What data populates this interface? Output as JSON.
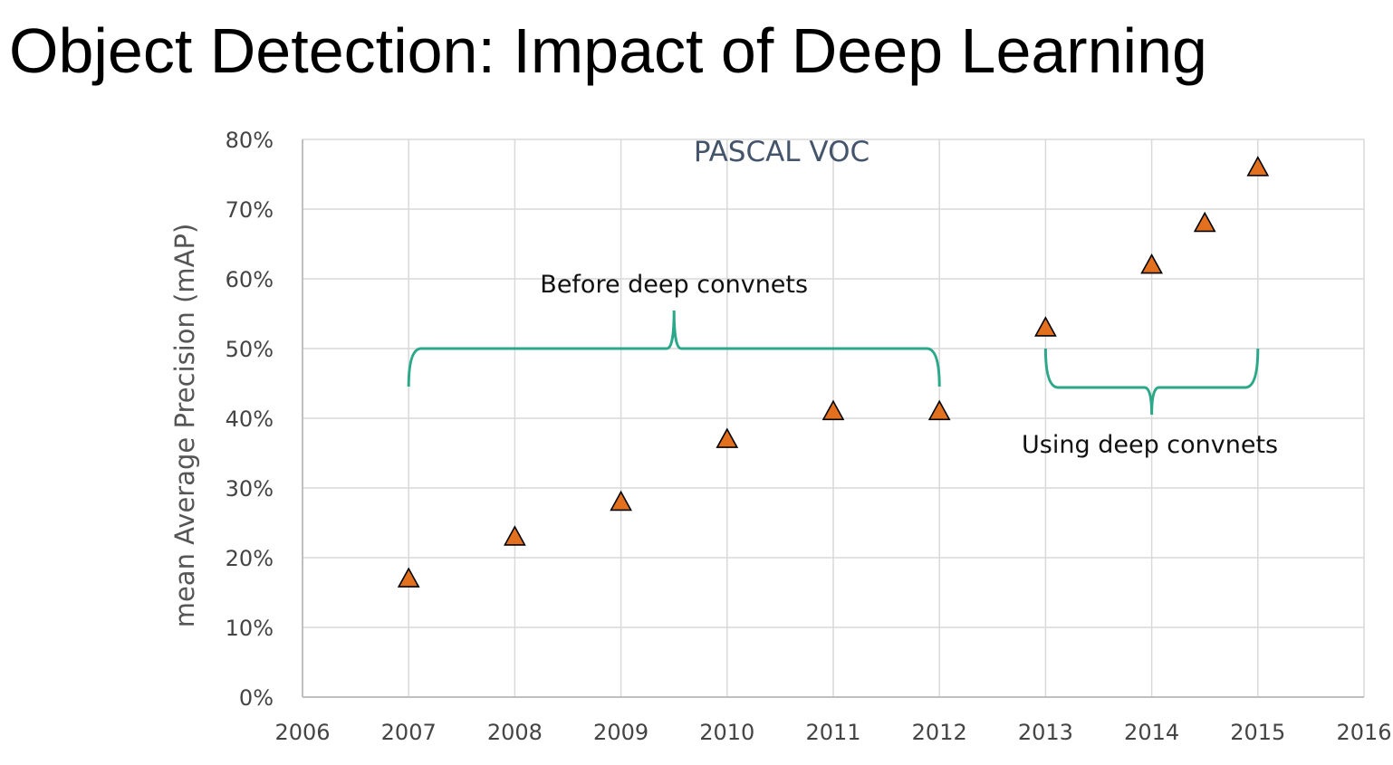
{
  "title": "Object Detection: Impact of Deep Learning",
  "chart_data": {
    "type": "scatter",
    "title": "PASCAL VOC",
    "xlabel": "",
    "ylabel": "mean Average Precision (mAP)",
    "xlim": [
      2006,
      2016
    ],
    "ylim": [
      0,
      80
    ],
    "x_ticks": [
      "2006",
      "2007",
      "2008",
      "2009",
      "2010",
      "2011",
      "2012",
      "2013",
      "2014",
      "2015",
      "2016"
    ],
    "y_ticks": [
      "0%",
      "10%",
      "20%",
      "30%",
      "40%",
      "50%",
      "60%",
      "70%",
      "80%"
    ],
    "grid": true,
    "marker": "triangle",
    "colors": {
      "marker_fill": "#e3701e",
      "marker_edge": "#000000",
      "bracket": "#2aa889",
      "grid": "#d9d9d9"
    },
    "series": [
      {
        "x": [
          2007,
          2008,
          2009,
          2010,
          2011,
          2012,
          2013,
          2014,
          2014.5,
          2015
        ],
        "y": [
          17,
          23,
          28,
          37,
          41,
          41,
          53,
          62,
          68,
          76
        ]
      }
    ],
    "annotations": [
      {
        "text": "Before deep convnets",
        "range": [
          2007,
          2012
        ],
        "value": 50,
        "orientation": "up"
      },
      {
        "text": "Using deep convnets",
        "range": [
          2013,
          2015
        ],
        "value": 50,
        "orientation": "down"
      }
    ]
  }
}
